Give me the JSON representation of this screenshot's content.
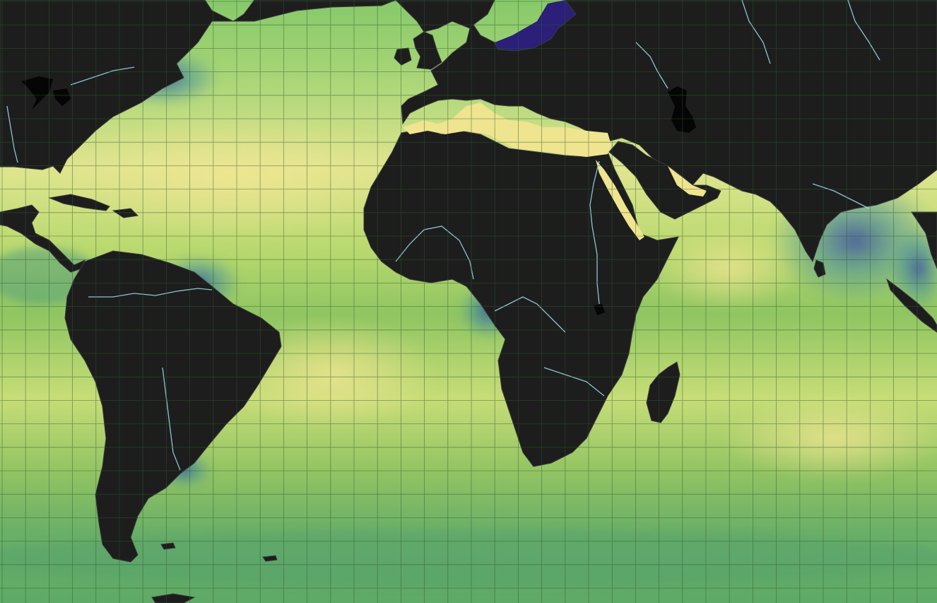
{
  "map": {
    "projection": "equirectangular",
    "layer": "sea-surface-salinity",
    "colors": {
      "background": "#1c1c1c",
      "land": "#1d1d1d",
      "borders": "#3a3a3a",
      "rivers": "#9fe3ee",
      "lakes": "#050505",
      "graticule": "#2f5a2a",
      "ocean_low": "#2b1f7a",
      "ocean_mid_low": "#3c7f9a",
      "ocean_mid": "#5fae62",
      "ocean_mid_high": "#97cc52",
      "ocean_high": "#efe48f"
    },
    "graticule": true
  }
}
